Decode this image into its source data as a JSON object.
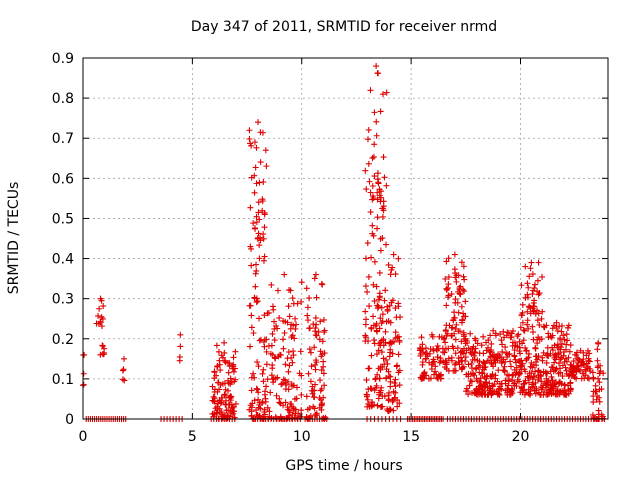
{
  "chart_data": {
    "type": "scatter",
    "title": "Day 347 of 2011, SRMTID for receiver nrmd",
    "xlabel": "GPS time / hours",
    "ylabel": "SRMTID / TECUs",
    "xlim": [
      0,
      24
    ],
    "ylim": [
      0,
      0.9
    ],
    "x_ticks": [
      0,
      5,
      10,
      15,
      20
    ],
    "y_ticks": [
      0,
      0.1,
      0.2,
      0.3,
      0.4,
      0.5,
      0.6,
      0.7,
      0.8,
      0.9
    ],
    "x_tick_labels": [
      "0",
      "5",
      "10",
      "15",
      "20"
    ],
    "y_tick_labels": [
      "0",
      "0.1",
      "0.2",
      "0.3",
      "0.4",
      "0.5",
      "0.6",
      "0.7",
      "0.8",
      "0.9"
    ],
    "grid": true,
    "marker": "+",
    "series_color": "#e00000",
    "clusters": [
      {
        "xmin": 0.0,
        "xmax": 0.1,
        "ymin": 0.08,
        "ymax": 0.16,
        "n": 4
      },
      {
        "xmin": 0.6,
        "xmax": 1.0,
        "ymin": 0.16,
        "ymax": 0.3,
        "n": 18
      },
      {
        "xmin": 1.8,
        "xmax": 1.95,
        "ymin": 0.09,
        "ymax": 0.15,
        "n": 4
      },
      {
        "xmin": 4.4,
        "xmax": 4.5,
        "ymin": 0.14,
        "ymax": 0.21,
        "n": 3
      },
      {
        "xmin": 5.9,
        "xmax": 7.0,
        "ymin": 0.0,
        "ymax": 0.19,
        "n": 110
      },
      {
        "xmin": 7.6,
        "xmax": 8.4,
        "ymin": 0.0,
        "ymax": 0.74,
        "n": 120
      },
      {
        "xmin": 8.4,
        "xmax": 10.0,
        "ymin": 0.0,
        "ymax": 0.36,
        "n": 130
      },
      {
        "xmin": 10.2,
        "xmax": 11.1,
        "ymin": 0.0,
        "ymax": 0.36,
        "n": 80
      },
      {
        "xmin": 12.9,
        "xmax": 13.9,
        "ymin": 0.03,
        "ymax": 0.88,
        "n": 160
      },
      {
        "xmin": 13.9,
        "xmax": 14.5,
        "ymin": 0.02,
        "ymax": 0.41,
        "n": 70
      },
      {
        "xmin": 15.4,
        "xmax": 16.5,
        "ymin": 0.1,
        "ymax": 0.21,
        "n": 70
      },
      {
        "xmin": 16.5,
        "xmax": 17.5,
        "ymin": 0.12,
        "ymax": 0.41,
        "n": 110
      },
      {
        "xmin": 17.5,
        "xmax": 20.0,
        "ymin": 0.06,
        "ymax": 0.22,
        "n": 260
      },
      {
        "xmin": 20.0,
        "xmax": 21.0,
        "ymin": 0.06,
        "ymax": 0.39,
        "n": 140
      },
      {
        "xmin": 21.0,
        "xmax": 22.3,
        "ymin": 0.06,
        "ymax": 0.24,
        "n": 160
      },
      {
        "xmin": 22.3,
        "xmax": 23.2,
        "ymin": 0.1,
        "ymax": 0.17,
        "n": 60
      },
      {
        "xmin": 23.3,
        "xmax": 23.8,
        "ymin": 0.0,
        "ymax": 0.19,
        "n": 40
      }
    ],
    "zero_ranges": [
      {
        "xmin": 0.1,
        "xmax": 2.0,
        "n": 20
      },
      {
        "xmin": 3.5,
        "xmax": 4.6,
        "n": 8
      },
      {
        "xmin": 5.8,
        "xmax": 7.0,
        "n": 10
      },
      {
        "xmin": 7.8,
        "xmax": 10.0,
        "n": 18
      },
      {
        "xmin": 10.1,
        "xmax": 11.2,
        "n": 10
      },
      {
        "xmin": 12.9,
        "xmax": 14.6,
        "n": 10
      },
      {
        "xmin": 14.8,
        "xmax": 16.5,
        "n": 22
      },
      {
        "xmin": 16.6,
        "xmax": 23.9,
        "n": 60
      }
    ]
  }
}
